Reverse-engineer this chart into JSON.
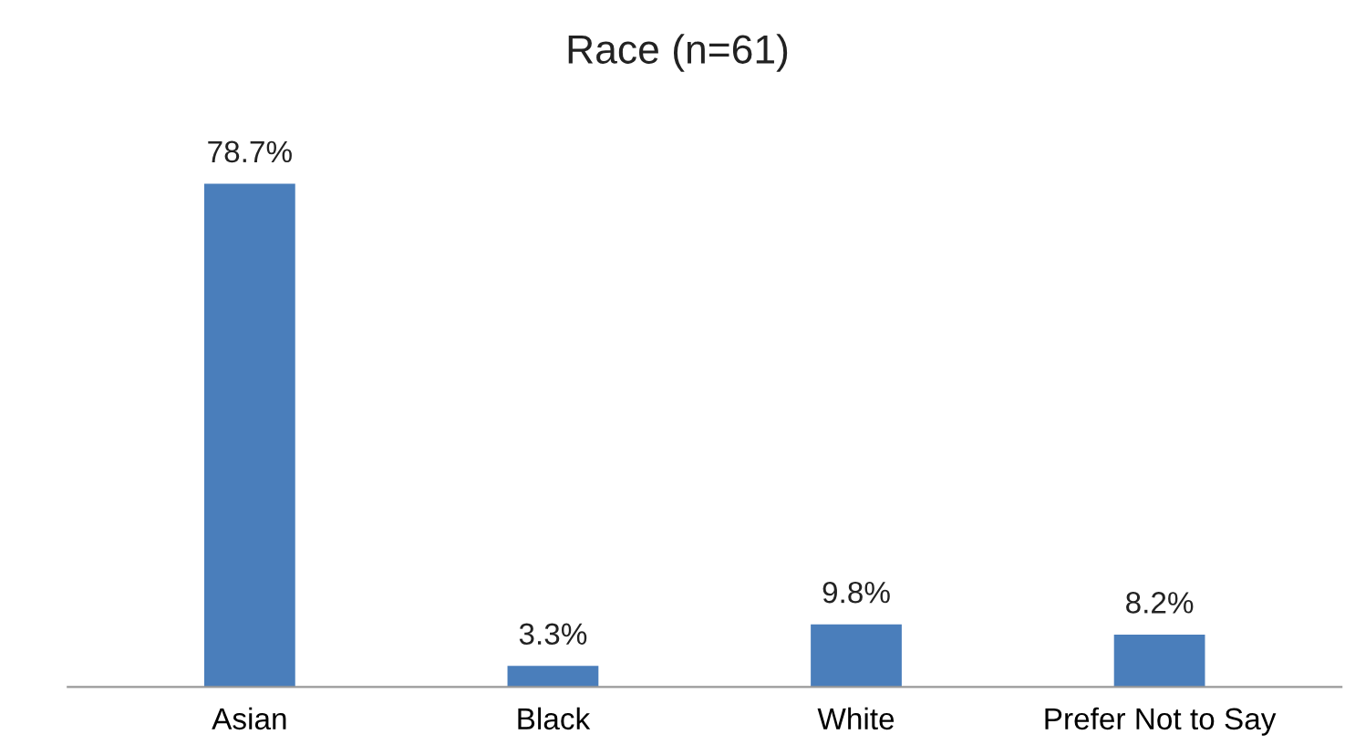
{
  "chart_data": {
    "type": "bar",
    "title": "Race (n=61)",
    "categories": [
      "Asian",
      "Black",
      "White",
      "Prefer Not to Say"
    ],
    "values": [
      78.7,
      3.3,
      9.8,
      8.2
    ],
    "value_labels": [
      "78.7%",
      "3.3%",
      "9.8%",
      "8.2%"
    ],
    "color": "#4a7ebb",
    "grid": false,
    "legend": false
  }
}
